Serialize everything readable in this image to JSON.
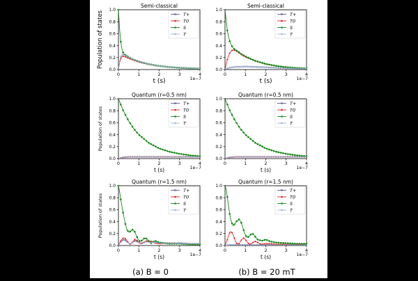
{
  "colors": {
    "T_plus": "#5a5a8c",
    "T0": "#e41a1c",
    "S": "#138a13",
    "T": "#9ab6d8",
    "background": "#ffffff",
    "page": "#000000"
  },
  "legend": {
    "T_plus": "T+",
    "T0": "T0",
    "S": "S",
    "T": "T"
  },
  "captions": {
    "left": "(a) B = 0",
    "right": "(b) B = 20 mT"
  },
  "chart_data": [
    {
      "type": "line",
      "title": "Semi-classical",
      "xlabel": "t (s)",
      "ylabel": "Population of states",
      "x_scale_label": "1e−7",
      "xlim": [
        0,
        4
      ],
      "ylim": [
        0,
        1.0
      ],
      "xticks": [
        "0",
        "1",
        "2",
        "3",
        "4"
      ],
      "yticks": [
        "0.0",
        "0.2",
        "0.4",
        "0.6",
        "0.8",
        "1.0"
      ],
      "legend_position": "top-right",
      "series": [
        {
          "name": "T+",
          "key": "T_plus",
          "x": [
            0,
            0.05,
            0.1,
            0.15,
            0.2,
            0.3,
            0.4,
            0.6,
            0.8,
            1.0,
            1.5,
            2.0,
            2.5,
            3.0,
            3.5,
            4.0
          ],
          "values": [
            0,
            0.12,
            0.2,
            0.24,
            0.25,
            0.24,
            0.22,
            0.19,
            0.16,
            0.135,
            0.09,
            0.06,
            0.042,
            0.03,
            0.022,
            0.016
          ]
        },
        {
          "name": "T0",
          "key": "T0",
          "x": [
            0,
            0.05,
            0.1,
            0.15,
            0.2,
            0.3,
            0.4,
            0.6,
            0.8,
            1.0,
            1.5,
            2.0,
            2.5,
            3.0,
            3.5,
            4.0
          ],
          "values": [
            0,
            0.1,
            0.17,
            0.21,
            0.22,
            0.22,
            0.2,
            0.175,
            0.15,
            0.125,
            0.085,
            0.058,
            0.04,
            0.028,
            0.02,
            0.015
          ]
        },
        {
          "name": "S",
          "key": "S",
          "x": [
            0,
            0.05,
            0.1,
            0.15,
            0.2,
            0.3,
            0.4,
            0.6,
            0.8,
            1.0,
            1.5,
            2.0,
            2.5,
            3.0,
            3.5,
            4.0
          ],
          "values": [
            1.0,
            0.7,
            0.5,
            0.38,
            0.3,
            0.25,
            0.23,
            0.19,
            0.16,
            0.135,
            0.09,
            0.06,
            0.042,
            0.03,
            0.022,
            0.016
          ]
        },
        {
          "name": "T",
          "key": "T",
          "x": [
            0,
            0.05,
            0.1,
            0.15,
            0.2,
            0.3,
            0.4,
            0.6,
            0.8,
            1.0,
            1.5,
            2.0,
            2.5,
            3.0,
            3.5,
            4.0
          ],
          "values": [
            0,
            0.12,
            0.2,
            0.24,
            0.25,
            0.24,
            0.22,
            0.19,
            0.16,
            0.135,
            0.09,
            0.06,
            0.042,
            0.03,
            0.022,
            0.016
          ]
        }
      ]
    },
    {
      "type": "line",
      "title": "Semi-classical",
      "xlabel": "t (s)",
      "ylabel": "",
      "x_scale_label": "1e−7",
      "xlim": [
        0,
        4
      ],
      "ylim": [
        0,
        1.0
      ],
      "xticks": [
        "0",
        "1",
        "2",
        "3",
        "4"
      ],
      "yticks": [
        "0.0",
        "0.2",
        "0.4",
        "0.6",
        "0.8",
        "1.0"
      ],
      "legend_position": "top-right",
      "series": [
        {
          "name": "T+",
          "key": "T_plus",
          "x": [
            0,
            0.2,
            0.5,
            1.0,
            1.5,
            2.0,
            2.5,
            3.0,
            3.5,
            4.0
          ],
          "values": [
            0,
            0.03,
            0.045,
            0.05,
            0.045,
            0.038,
            0.03,
            0.024,
            0.019,
            0.015
          ]
        },
        {
          "name": "T0",
          "key": "T0",
          "x": [
            0,
            0.1,
            0.2,
            0.3,
            0.4,
            0.5,
            0.6,
            0.8,
            1.0,
            1.5,
            2.0,
            2.5,
            3.0,
            3.5,
            4.0
          ],
          "values": [
            0,
            0.15,
            0.26,
            0.31,
            0.33,
            0.32,
            0.3,
            0.25,
            0.21,
            0.14,
            0.09,
            0.06,
            0.04,
            0.027,
            0.018
          ]
        },
        {
          "name": "S",
          "key": "S",
          "x": [
            0,
            0.1,
            0.2,
            0.3,
            0.4,
            0.5,
            0.6,
            0.8,
            1.0,
            1.5,
            2.0,
            2.5,
            3.0,
            3.5,
            4.0
          ],
          "values": [
            1.0,
            0.68,
            0.5,
            0.41,
            0.36,
            0.33,
            0.31,
            0.26,
            0.22,
            0.145,
            0.095,
            0.062,
            0.041,
            0.028,
            0.019
          ]
        },
        {
          "name": "T",
          "key": "T",
          "x": [
            0,
            0.2,
            0.5,
            1.0,
            1.5,
            2.0,
            2.5,
            3.0,
            3.5,
            4.0
          ],
          "values": [
            0,
            0.03,
            0.045,
            0.05,
            0.045,
            0.038,
            0.03,
            0.024,
            0.019,
            0.015
          ]
        }
      ]
    },
    {
      "type": "line",
      "title": "Quantum (r=0.5 nm)",
      "xlabel": "t (s)",
      "ylabel": "Population of states",
      "x_scale_label": "1e−7",
      "xlim": [
        0,
        4
      ],
      "ylim": [
        0,
        1.0
      ],
      "xticks": [
        "0",
        "1",
        "2",
        "3",
        "4"
      ],
      "yticks": [
        "0.0",
        "0.2",
        "0.4",
        "0.6",
        "0.8",
        "1.0"
      ],
      "legend_position": "top-right",
      "series": [
        {
          "name": "T+",
          "key": "T_plus",
          "x": [
            0,
            0.2,
            0.5,
            1.0,
            2.0,
            3.0,
            4.0
          ],
          "values": [
            0,
            0.02,
            0.03,
            0.03,
            0.03,
            0.03,
            0.03
          ]
        },
        {
          "name": "T0",
          "key": "T0",
          "x": [
            0,
            0.2,
            0.5,
            1.0,
            2.0,
            3.0,
            4.0
          ],
          "values": [
            0,
            0.02,
            0.03,
            0.03,
            0.03,
            0.03,
            0.03
          ]
        },
        {
          "name": "S",
          "key": "S",
          "x": [
            0,
            0.25,
            0.5,
            0.75,
            1.0,
            1.5,
            2.0,
            2.5,
            3.0,
            3.5,
            4.0
          ],
          "values": [
            1.0,
            0.79,
            0.63,
            0.5,
            0.4,
            0.26,
            0.17,
            0.115,
            0.08,
            0.055,
            0.04
          ]
        },
        {
          "name": "T",
          "key": "T",
          "x": [
            0,
            0.2,
            0.5,
            1.0,
            2.0,
            3.0,
            4.0
          ],
          "values": [
            0,
            0.02,
            0.03,
            0.03,
            0.03,
            0.03,
            0.03
          ]
        }
      ]
    },
    {
      "type": "line",
      "title": "Quantum (r=0.5 nm)",
      "xlabel": "t (s)",
      "ylabel": "",
      "x_scale_label": "1e−7",
      "xlim": [
        0,
        4
      ],
      "ylim": [
        0,
        1.0
      ],
      "xticks": [
        "0",
        "1",
        "2",
        "3",
        "4"
      ],
      "yticks": [
        "0.0",
        "0.2",
        "0.4",
        "0.6",
        "0.8",
        "1.0"
      ],
      "legend_position": "top-right",
      "series": [
        {
          "name": "T+",
          "key": "T_plus",
          "x": [
            0,
            0.2,
            0.5,
            1.0,
            2.0,
            3.0,
            4.0
          ],
          "values": [
            0,
            0.02,
            0.03,
            0.03,
            0.03,
            0.03,
            0.03
          ]
        },
        {
          "name": "T0",
          "key": "T0",
          "x": [
            0,
            0.2,
            0.5,
            1.0,
            2.0,
            3.0,
            4.0
          ],
          "values": [
            0,
            0.02,
            0.03,
            0.03,
            0.03,
            0.03,
            0.03
          ]
        },
        {
          "name": "S",
          "key": "S",
          "x": [
            0,
            0.25,
            0.5,
            0.75,
            1.0,
            1.5,
            2.0,
            2.5,
            3.0,
            3.5,
            4.0
          ],
          "values": [
            1.0,
            0.79,
            0.63,
            0.5,
            0.4,
            0.26,
            0.17,
            0.115,
            0.08,
            0.055,
            0.04
          ]
        },
        {
          "name": "T",
          "key": "T",
          "x": [
            0,
            0.2,
            0.5,
            1.0,
            2.0,
            3.0,
            4.0
          ],
          "values": [
            0,
            0.02,
            0.03,
            0.03,
            0.03,
            0.03,
            0.03
          ]
        }
      ]
    },
    {
      "type": "line",
      "title": "Quantum (r=1.5 nm)",
      "xlabel": "t (s)",
      "ylabel": "Population of states",
      "x_scale_label": "1e−7",
      "xlim": [
        0,
        4
      ],
      "ylim": [
        0,
        1.0
      ],
      "xticks": [
        "0",
        "1",
        "2",
        "3",
        "4"
      ],
      "yticks": [
        "0.0",
        "0.2",
        "0.4",
        "0.6",
        "0.8",
        "1.0"
      ],
      "legend_position": "top-right",
      "series": [
        {
          "name": "T+",
          "key": "T_plus",
          "x": [
            0,
            0.1,
            0.2,
            0.3,
            0.4,
            0.5,
            0.6,
            0.7,
            0.8,
            0.9,
            1.0,
            1.1,
            1.2,
            1.4,
            1.6,
            1.8,
            2.0,
            2.5,
            3.0,
            3.5,
            4.0
          ],
          "values": [
            0,
            0.05,
            0.09,
            0.1,
            0.07,
            0.04,
            0.03,
            0.05,
            0.08,
            0.07,
            0.05,
            0.04,
            0.05,
            0.07,
            0.06,
            0.05,
            0.05,
            0.04,
            0.04,
            0.03,
            0.03
          ]
        },
        {
          "name": "T0",
          "key": "T0",
          "x": [
            0,
            0.1,
            0.2,
            0.3,
            0.4,
            0.5,
            0.6,
            0.7,
            0.8,
            0.9,
            1.0,
            1.1,
            1.2,
            1.4,
            1.6,
            1.8,
            2.0,
            2.5,
            3.0,
            3.5,
            4.0
          ],
          "values": [
            0,
            0.07,
            0.12,
            0.13,
            0.09,
            0.04,
            0.02,
            0.06,
            0.1,
            0.09,
            0.05,
            0.03,
            0.04,
            0.08,
            0.07,
            0.04,
            0.03,
            0.04,
            0.03,
            0.03,
            0.02
          ]
        },
        {
          "name": "S",
          "key": "S",
          "x": [
            0,
            0.05,
            0.1,
            0.15,
            0.2,
            0.3,
            0.4,
            0.5,
            0.6,
            0.7,
            0.8,
            0.9,
            1.0,
            1.1,
            1.2,
            1.3,
            1.4,
            1.5,
            1.6,
            1.7,
            1.8,
            2.0,
            2.2,
            2.5,
            3.0,
            3.5,
            4.0
          ],
          "values": [
            1.0,
            0.92,
            0.8,
            0.7,
            0.6,
            0.42,
            0.28,
            0.22,
            0.24,
            0.27,
            0.23,
            0.15,
            0.08,
            0.07,
            0.1,
            0.13,
            0.11,
            0.07,
            0.04,
            0.06,
            0.08,
            0.05,
            0.04,
            0.03,
            0.03,
            0.02,
            0.02
          ]
        },
        {
          "name": "T",
          "key": "T",
          "x": [
            0,
            0.1,
            0.2,
            0.3,
            0.4,
            0.5,
            0.6,
            0.7,
            0.8,
            0.9,
            1.0,
            1.1,
            1.2,
            1.4,
            1.6,
            1.8,
            2.0,
            2.5,
            3.0,
            3.5,
            4.0
          ],
          "values": [
            0,
            0.05,
            0.08,
            0.09,
            0.06,
            0.04,
            0.03,
            0.05,
            0.07,
            0.06,
            0.05,
            0.04,
            0.05,
            0.06,
            0.05,
            0.05,
            0.04,
            0.04,
            0.03,
            0.03,
            0.03
          ]
        }
      ]
    },
    {
      "type": "line",
      "title": "Quantum (r=1.5 nm)",
      "xlabel": "t (s)",
      "ylabel": "",
      "x_scale_label": "1e−7",
      "xlim": [
        0,
        4
      ],
      "ylim": [
        0,
        1.0
      ],
      "xticks": [
        "0",
        "1",
        "2",
        "3",
        "4"
      ],
      "yticks": [
        "0.0",
        "0.2",
        "0.4",
        "0.6",
        "0.8",
        "1.0"
      ],
      "legend_position": "top-right",
      "series": [
        {
          "name": "T+",
          "key": "T_plus",
          "x": [
            0,
            0.2,
            0.5,
            1.0,
            2.0,
            3.0,
            4.0
          ],
          "values": [
            0,
            0.01,
            0.01,
            0.01,
            0.01,
            0.01,
            0.01
          ]
        },
        {
          "name": "T0",
          "key": "T0",
          "x": [
            0,
            0.1,
            0.2,
            0.3,
            0.4,
            0.5,
            0.6,
            0.7,
            0.8,
            0.9,
            1.0,
            1.1,
            1.2,
            1.3,
            1.4,
            1.5,
            1.6,
            1.7,
            1.8,
            2.0,
            2.2,
            2.5,
            3.0,
            3.5,
            4.0
          ],
          "values": [
            0,
            0.08,
            0.2,
            0.24,
            0.18,
            0.08,
            0.02,
            0.03,
            0.09,
            0.13,
            0.1,
            0.05,
            0.02,
            0.03,
            0.06,
            0.07,
            0.05,
            0.03,
            0.02,
            0.03,
            0.03,
            0.02,
            0.02,
            0.02,
            0.02
          ]
        },
        {
          "name": "S",
          "key": "S",
          "x": [
            0,
            0.05,
            0.1,
            0.15,
            0.2,
            0.3,
            0.4,
            0.5,
            0.6,
            0.7,
            0.8,
            0.9,
            1.0,
            1.1,
            1.2,
            1.3,
            1.4,
            1.5,
            1.6,
            1.8,
            2.0,
            2.2,
            2.5,
            3.0,
            3.5,
            4.0
          ],
          "values": [
            1.0,
            0.95,
            0.85,
            0.72,
            0.58,
            0.4,
            0.33,
            0.37,
            0.42,
            0.44,
            0.38,
            0.27,
            0.17,
            0.13,
            0.16,
            0.2,
            0.19,
            0.14,
            0.1,
            0.08,
            0.1,
            0.07,
            0.05,
            0.04,
            0.03,
            0.03
          ]
        },
        {
          "name": "T",
          "key": "T",
          "x": [
            0,
            0.2,
            0.5,
            1.0,
            2.0,
            3.0,
            4.0
          ],
          "values": [
            0,
            0.01,
            0.01,
            0.01,
            0.01,
            0.01,
            0.01
          ]
        }
      ]
    }
  ]
}
